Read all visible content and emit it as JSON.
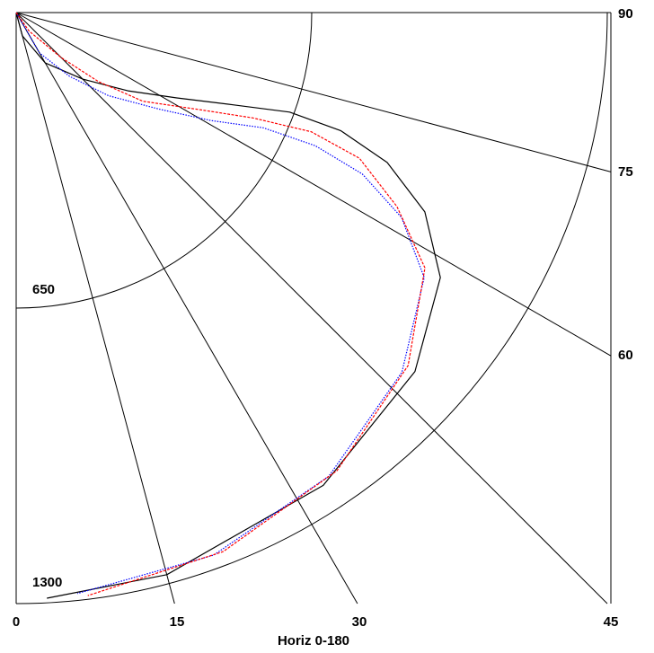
{
  "chart_data": {
    "type": "polar-quadrant",
    "xlabel": "Horiz 0-180",
    "bottom_tick_labels": [
      "0",
      "15",
      "30",
      "45"
    ],
    "right_tick_labels": [
      "90",
      "75",
      "60"
    ],
    "ring_labels": [
      "650",
      "1300"
    ],
    "ring_radii": [
      650,
      1300
    ],
    "max_radius": 1300,
    "spoke_angles_deg": [
      15,
      30,
      45,
      60,
      75
    ],
    "grid": true,
    "series": [
      {
        "color": "#000000",
        "style": "solid",
        "points": [
          [
            0,
            0
          ],
          [
            53,
            15
          ],
          [
            128,
            30
          ],
          [
            207,
            45
          ],
          [
            300,
            55
          ],
          [
            400,
            62
          ],
          [
            520,
            67
          ],
          [
            640,
            70
          ],
          [
            760,
            70
          ],
          [
            880,
            68
          ],
          [
            1000,
            64
          ],
          [
            1100,
            58
          ],
          [
            1180,
            48
          ],
          [
            1240,
            33
          ],
          [
            1280,
            15
          ],
          [
            1290,
            3
          ]
        ]
      },
      {
        "color": "#0000ff",
        "style": "dotted",
        "points": [
          [
            0,
            0
          ],
          [
            103,
            30
          ],
          [
            183,
            40
          ],
          [
            273,
            48
          ],
          [
            380,
            56
          ],
          [
            490,
            61
          ],
          [
            600,
            65
          ],
          [
            720,
            66
          ],
          [
            840,
            65
          ],
          [
            960,
            62
          ],
          [
            1070,
            57
          ],
          [
            1160,
            47
          ],
          [
            1230,
            34
          ],
          [
            1270,
            20
          ],
          [
            1285,
            6
          ]
        ]
      },
      {
        "color": "#ff0000",
        "style": "dashed",
        "points": [
          [
            0,
            0
          ],
          [
            50,
            35
          ],
          [
            140,
            45
          ],
          [
            236,
            50
          ],
          [
            340,
            55
          ],
          [
            454,
            62
          ],
          [
            570,
            66
          ],
          [
            700,
            68
          ],
          [
            820,
            67
          ],
          [
            940,
            63
          ],
          [
            1060,
            58
          ],
          [
            1160,
            48
          ],
          [
            1230,
            35
          ],
          [
            1270,
            21
          ],
          [
            1292,
            7
          ]
        ]
      }
    ]
  }
}
